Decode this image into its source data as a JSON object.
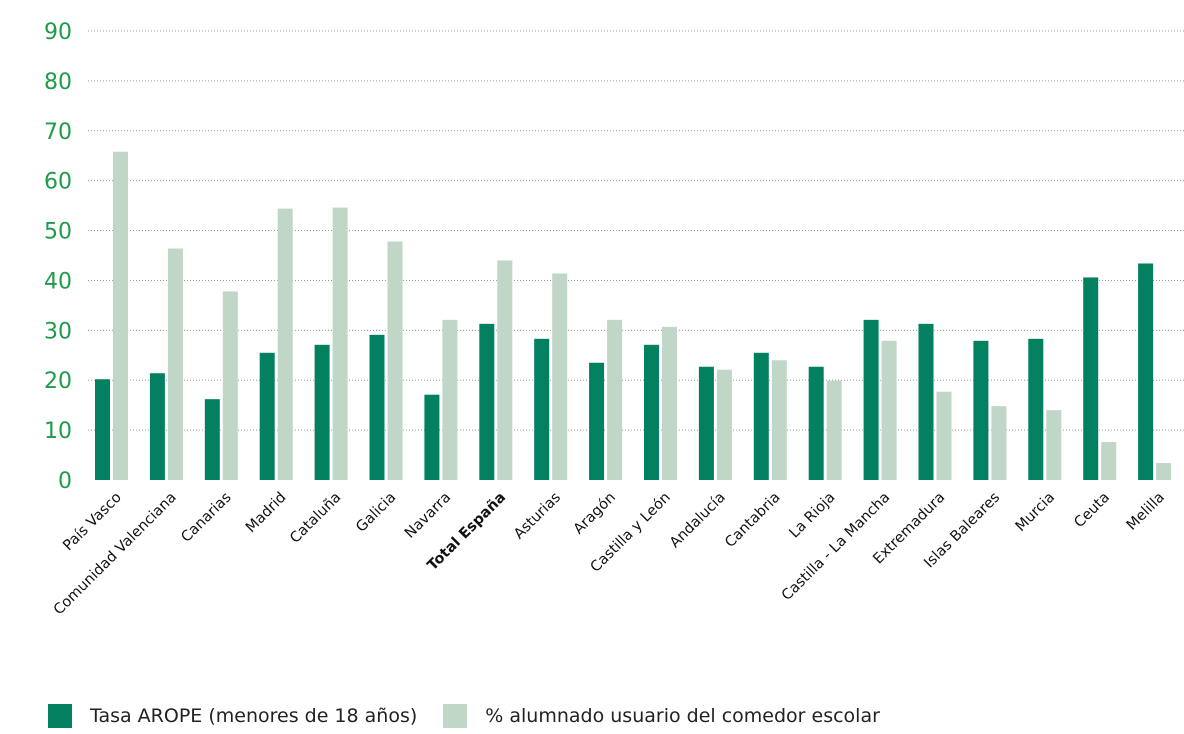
{
  "colors": {
    "arope": "#028060",
    "comedor": "#c0d6c7",
    "axis_text": "#1e9c4a",
    "grid": "#9a9a9a"
  },
  "chart_data": {
    "type": "bar",
    "categories": [
      "País Vasco",
      "Comunidad  Valenciana",
      "Canarias",
      "Madrid",
      "Cataluña",
      "Galicia",
      "Navarra",
      "Total España",
      "Asturias",
      "Aragón",
      "Castilla y León",
      "Andalucía",
      "Cantabria",
      "La Rioja",
      "Castilla - La Mancha",
      "Extremadura",
      "Islas Baleares",
      "Murcia",
      "Ceuta",
      "Melilla"
    ],
    "highlight_category": "Total España",
    "series": [
      {
        "name": "Tasa AROPE (menores de 18 años)",
        "color": "#028060",
        "values": [
          20.2,
          21.4,
          16.2,
          25.5,
          27.1,
          29.1,
          17.1,
          31.3,
          28.3,
          23.5,
          27.1,
          22.7,
          25.5,
          22.7,
          32.1,
          31.3,
          27.9,
          28.3,
          40.6,
          43.4
        ]
      },
      {
        "name": "% alumnado usuario del comedor escolar",
        "color": "#c0d6c7",
        "values": [
          65.8,
          46.4,
          37.8,
          54.4,
          54.6,
          47.8,
          32.1,
          44.0,
          41.4,
          32.1,
          30.7,
          22.1,
          24.0,
          19.9,
          27.9,
          17.7,
          14.8,
          14.0,
          7.6,
          3.4
        ]
      }
    ],
    "yticks": [
      0,
      10,
      20,
      30,
      40,
      50,
      60,
      70,
      80,
      90
    ],
    "ylim": [
      0,
      90
    ],
    "grid": true,
    "legend_position": "bottom-left"
  }
}
